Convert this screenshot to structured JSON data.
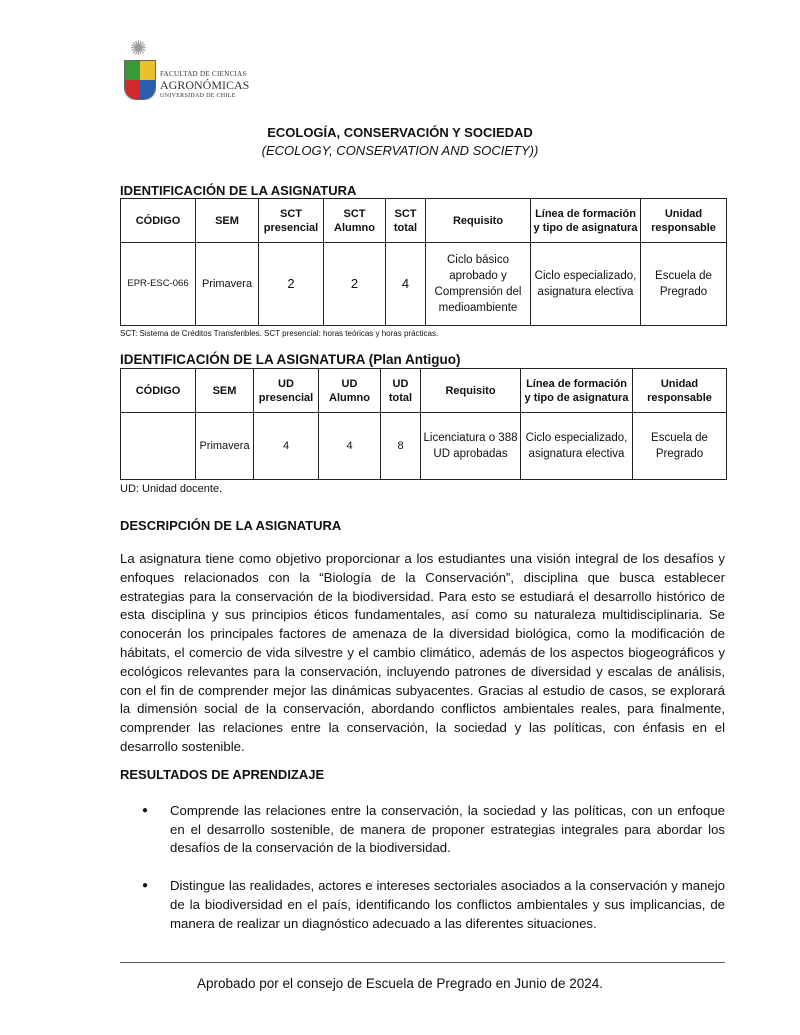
{
  "logo": {
    "line1": "FACULTAD DE CIENCIAS",
    "line2": "AGRONÓMICAS",
    "line3": "UNIVERSIDAD DE CHILE"
  },
  "title": "ECOLOGÍA, CONSERVACIÓN Y SOCIEDAD",
  "subtitle": "(ECOLOGY, CONSERVATION AND SOCIETY))",
  "section1": {
    "heading": "IDENTIFICACIÓN DE LA ASIGNATURA",
    "headers": [
      "CÓDIGO",
      "SEM",
      "SCT presencial",
      "SCT Alumno",
      "SCT total",
      "Requisito",
      "Línea de formación y tipo de asignatura",
      "Unidad responsable"
    ],
    "row": [
      "EPR-ESC-066",
      "Primavera",
      "2",
      "2",
      "4",
      "Ciclo básico aprobado y Comprensión del medioambiente",
      "Ciclo especializado, asignatura electiva",
      "Escuela de Pregrado"
    ],
    "note": "SCT: Sistema de Créditos Transferibles. SCT presencial: horas teóricas y horas prácticas."
  },
  "section2": {
    "heading": "IDENTIFICACIÓN DE LA ASIGNATURA (Plan Antiguo)",
    "headers": [
      "CÓDIGO",
      "SEM",
      "UD presencial",
      "UD Alumno",
      "UD total",
      "Requisito",
      "Línea de formación y tipo de asignatura",
      "Unidad responsable"
    ],
    "row": [
      "",
      "Primavera",
      "4",
      "4",
      "8",
      "Licenciatura o 388 UD aprobadas",
      "Ciclo especializado, asignatura electiva",
      "Escuela de Pregrado"
    ],
    "note": "UD: Unidad docente."
  },
  "description": {
    "heading": "DESCRIPCIÓN DE LA ASIGNATURA",
    "text": "La asignatura tiene como objetivo proporcionar a los estudiantes una visión integral de los desafíos y enfoques relacionados con la “Biología de la Conservación”, disciplina que busca establecer estrategias para la conservación de la biodiversidad. Para esto se estudiará el desarrollo histórico de esta disciplina y sus principios éticos fundamentales, así como su naturaleza multidisciplinaria. Se conocerán los principales factores de amenaza de la diversidad biológica, como la modificación de hábitats, el comercio de vida silvestre y el cambio climático, además de los aspectos biogeográficos y ecológicos relevantes para la conservación, incluyendo patrones de diversidad y escalas de análisis, con el fin de comprender mejor las dinámicas subyacentes. Gracias al estudio de casos, se explorará la dimensión social de la conservación, abordando conflictos ambientales reales, para finalmente, comprender las relaciones entre la conservación, la sociedad y las políticas, con énfasis en el desarrollo sostenible."
  },
  "outcomes": {
    "heading": "RESULTADOS DE APRENDIZAJE",
    "items": [
      "Comprende las relaciones entre la conservación, la sociedad y las políticas, con un enfoque en el desarrollo sostenible, de manera de proponer estrategias integrales para abordar los desafíos de la conservación de la biodiversidad.",
      "Distingue las realidades, actores e intereses sectoriales asociados a la conservación y manejo de la biodiversidad en el país, identificando los conflictos ambientales y sus implicancias, de manera de realizar un diagnóstico adecuado a las diferentes situaciones."
    ]
  },
  "footer": "Aprobado por el consejo de Escuela de Pregrado en Junio de 2024."
}
